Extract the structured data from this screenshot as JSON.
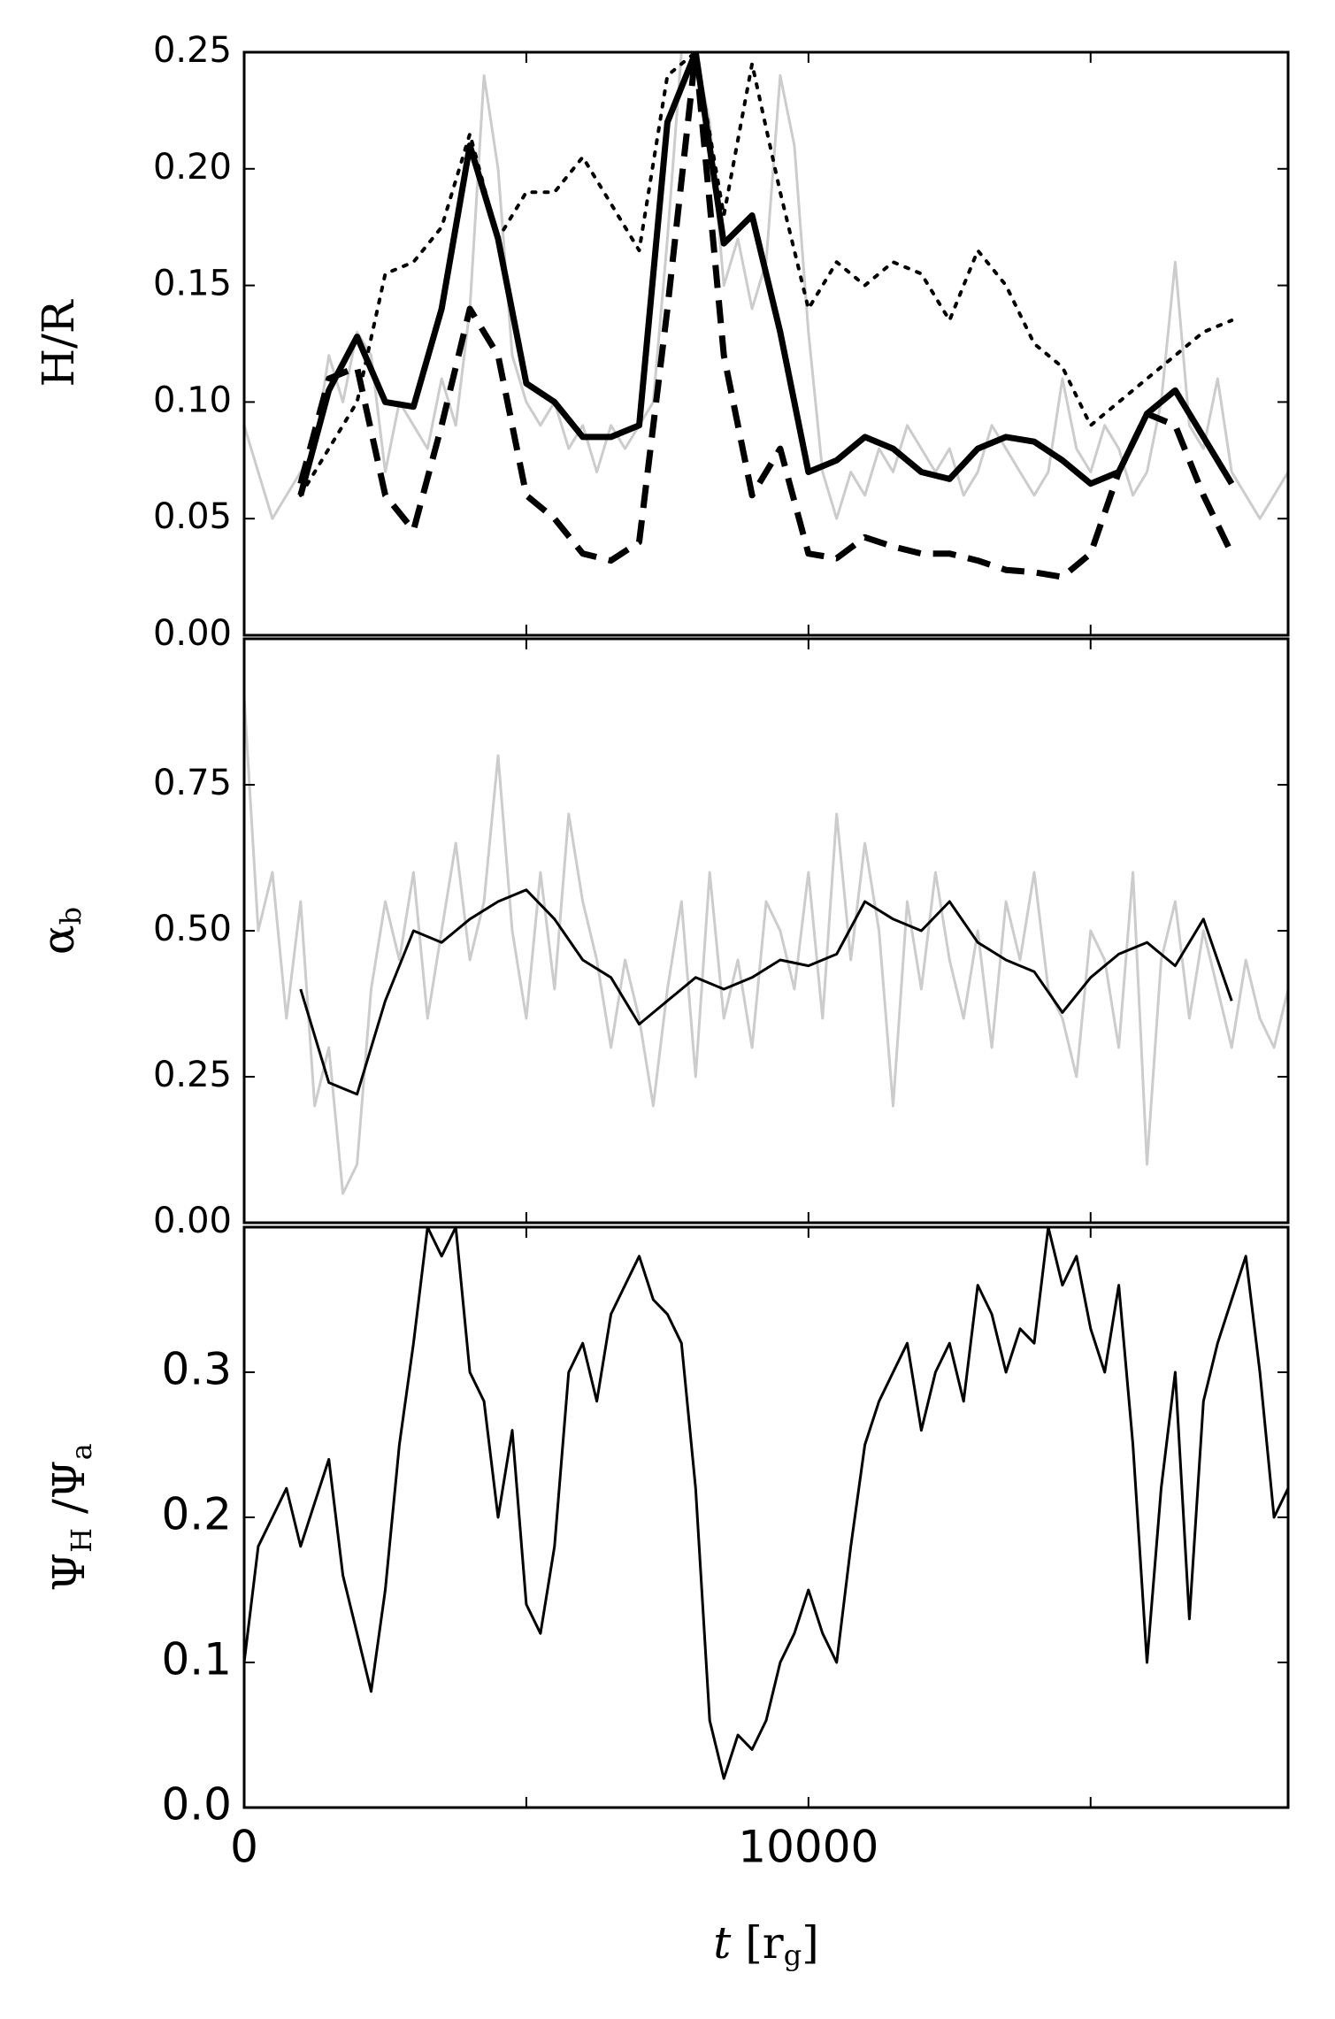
{
  "chart_data": [
    {
      "type": "line",
      "ylabel": [
        "H/R"
      ],
      "xlim": [
        0,
        18500
      ],
      "xticks": [
        0,
        10000
      ],
      "xminorticks": [
        5000,
        15000
      ],
      "ylim": [
        0,
        0.25
      ],
      "yticks": [
        {
          "value": 0,
          "label": "0.00"
        },
        {
          "value": 0.05,
          "label": "0.05"
        },
        {
          "value": 0.1,
          "label": "0.10"
        },
        {
          "value": 0.15,
          "label": "0.15"
        },
        {
          "value": 0.2,
          "label": "0.20"
        },
        {
          "value": 0.25,
          "label": "0.25"
        }
      ],
      "x": [
        0,
        250,
        500,
        750,
        1000,
        1250,
        1500,
        1750,
        2000,
        2250,
        2500,
        2750,
        3000,
        3250,
        3500,
        3750,
        4000,
        4250,
        4500,
        4750,
        5000,
        5250,
        5500,
        5750,
        6000,
        6250,
        6500,
        6750,
        7000,
        7250,
        7500,
        7750,
        8000,
        8250,
        8500,
        8750,
        9000,
        9250,
        9500,
        9750,
        10000,
        10250,
        10500,
        10750,
        11000,
        11250,
        11500,
        11750,
        12000,
        12250,
        12500,
        12750,
        13000,
        13250,
        13500,
        13750,
        14000,
        14250,
        14500,
        14750,
        15000,
        15250,
        15500,
        15750,
        16000,
        16250,
        16500,
        16750,
        17000,
        17250,
        17500,
        17750,
        18000,
        18250,
        18500
      ],
      "series": [
        {
          "color": "#cccccc",
          "style": "solid",
          "weight": "thin",
          "values": [
            0.09,
            0.07,
            0.05,
            0.06,
            0.07,
            0.08,
            0.12,
            0.1,
            0.13,
            0.12,
            0.07,
            0.1,
            0.09,
            0.08,
            0.11,
            0.09,
            0.14,
            0.24,
            0.2,
            0.12,
            0.1,
            0.09,
            0.1,
            0.08,
            0.09,
            0.07,
            0.09,
            0.08,
            0.09,
            0.1,
            0.17,
            0.25,
            0.25,
            0.22,
            0.15,
            0.17,
            0.14,
            0.16,
            0.24,
            0.21,
            0.13,
            0.07,
            0.05,
            0.07,
            0.06,
            0.08,
            0.07,
            0.09,
            0.08,
            0.07,
            0.08,
            0.06,
            0.07,
            0.09,
            0.08,
            0.07,
            0.06,
            0.07,
            0.11,
            0.08,
            0.07,
            0.09,
            0.08,
            0.06,
            0.07,
            0.1,
            0.16,
            0.09,
            0.08,
            0.11,
            0.07,
            0.06,
            0.05,
            0.06,
            0.07
          ]
        },
        {
          "color": "#000000",
          "style": "dotted",
          "weight": "medium",
          "x": [
            1000,
            1500,
            2000,
            2500,
            3000,
            3500,
            4000,
            4500,
            5000,
            5500,
            6000,
            6500,
            7000,
            7500,
            8000,
            8500,
            9000,
            9500,
            10000,
            10500,
            11000,
            11500,
            12000,
            12500,
            13000,
            13500,
            14000,
            14500,
            15000,
            15500,
            16000,
            16500,
            17000,
            17500
          ],
          "values": [
            0.06,
            0.08,
            0.1,
            0.155,
            0.16,
            0.175,
            0.215,
            0.17,
            0.19,
            0.19,
            0.205,
            0.185,
            0.165,
            0.24,
            0.25,
            0.18,
            0.245,
            0.19,
            0.14,
            0.16,
            0.15,
            0.16,
            0.155,
            0.135,
            0.165,
            0.15,
            0.125,
            0.115,
            0.09,
            0.1,
            0.11,
            0.12,
            0.13,
            0.135
          ]
        },
        {
          "color": "#000000",
          "style": "dashed",
          "weight": "thick",
          "x": [
            1000,
            1500,
            2000,
            2500,
            3000,
            3500,
            4000,
            4500,
            5000,
            5500,
            6000,
            6500,
            7000,
            7500,
            8000,
            8500,
            9000,
            9500,
            10000,
            10500,
            11000,
            11500,
            12000,
            12500,
            13000,
            13500,
            14000,
            14500,
            15000,
            15500,
            16000,
            16500,
            17000,
            17500
          ],
          "values": [
            0.065,
            0.11,
            0.115,
            0.06,
            0.045,
            0.09,
            0.14,
            0.12,
            0.06,
            0.05,
            0.035,
            0.032,
            0.04,
            0.14,
            0.25,
            0.12,
            0.06,
            0.08,
            0.035,
            0.033,
            0.042,
            0.038,
            0.035,
            0.035,
            0.032,
            0.028,
            0.027,
            0.025,
            0.035,
            0.07,
            0.095,
            0.09,
            0.06,
            0.035
          ]
        },
        {
          "color": "#000000",
          "style": "solid",
          "weight": "thick",
          "x": [
            1000,
            1500,
            2000,
            2500,
            3000,
            3500,
            4000,
            4500,
            5000,
            5500,
            6000,
            6500,
            7000,
            7500,
            8000,
            8500,
            9000,
            9500,
            10000,
            10500,
            11000,
            11500,
            12000,
            12500,
            13000,
            13500,
            14000,
            14500,
            15000,
            15500,
            16000,
            16500,
            17000,
            17500
          ],
          "values": [
            0.06,
            0.105,
            0.128,
            0.1,
            0.098,
            0.14,
            0.21,
            0.17,
            0.108,
            0.1,
            0.085,
            0.085,
            0.09,
            0.22,
            0.25,
            0.168,
            0.18,
            0.13,
            0.07,
            0.075,
            0.085,
            0.08,
            0.07,
            0.067,
            0.08,
            0.085,
            0.083,
            0.075,
            0.065,
            0.07,
            0.095,
            0.105,
            0.085,
            0.065
          ]
        }
      ]
    },
    {
      "type": "line",
      "ylabel": [
        "α",
        "b"
      ],
      "xlim": [
        0,
        18500
      ],
      "xticks": [
        0,
        10000
      ],
      "xminorticks": [
        5000,
        15000
      ],
      "ylim": [
        0,
        1
      ],
      "yticks": [
        {
          "value": 0,
          "label": "0.00"
        },
        {
          "value": 0.25,
          "label": "0.25"
        },
        {
          "value": 0.5,
          "label": "0.50"
        },
        {
          "value": 0.75,
          "label": "0.75"
        }
      ],
      "x": [
        0,
        250,
        500,
        750,
        1000,
        1250,
        1500,
        1750,
        2000,
        2250,
        2500,
        2750,
        3000,
        3250,
        3500,
        3750,
        4000,
        4250,
        4500,
        4750,
        5000,
        5250,
        5500,
        5750,
        6000,
        6250,
        6500,
        6750,
        7000,
        7250,
        7500,
        7750,
        8000,
        8250,
        8500,
        8750,
        9000,
        9250,
        9500,
        9750,
        10000,
        10250,
        10500,
        10750,
        11000,
        11250,
        11500,
        11750,
        12000,
        12250,
        12500,
        12750,
        13000,
        13250,
        13500,
        13750,
        14000,
        14250,
        14500,
        14750,
        15000,
        15250,
        15500,
        15750,
        16000,
        16250,
        16500,
        16750,
        17000,
        17250,
        17500,
        17750,
        18000,
        18250,
        18500
      ],
      "series": [
        {
          "color": "#cccccc",
          "style": "solid",
          "weight": "thin",
          "values": [
            0.9,
            0.5,
            0.6,
            0.35,
            0.55,
            0.2,
            0.3,
            0.05,
            0.1,
            0.4,
            0.55,
            0.45,
            0.6,
            0.35,
            0.5,
            0.65,
            0.45,
            0.55,
            0.8,
            0.5,
            0.35,
            0.6,
            0.4,
            0.7,
            0.55,
            0.45,
            0.3,
            0.45,
            0.35,
            0.2,
            0.4,
            0.55,
            0.25,
            0.6,
            0.35,
            0.45,
            0.3,
            0.55,
            0.5,
            0.4,
            0.6,
            0.35,
            0.7,
            0.45,
            0.65,
            0.5,
            0.2,
            0.55,
            0.4,
            0.6,
            0.45,
            0.35,
            0.5,
            0.3,
            0.55,
            0.45,
            0.6,
            0.4,
            0.35,
            0.25,
            0.5,
            0.45,
            0.3,
            0.6,
            0.1,
            0.45,
            0.55,
            0.35,
            0.5,
            0.4,
            0.3,
            0.45,
            0.35,
            0.3,
            0.4
          ]
        },
        {
          "color": "#000000",
          "style": "solid",
          "weight": "thin",
          "x": [
            1000,
            1500,
            2000,
            2500,
            3000,
            3500,
            4000,
            4500,
            5000,
            5500,
            6000,
            6500,
            7000,
            7500,
            8000,
            8500,
            9000,
            9500,
            10000,
            10500,
            11000,
            11500,
            12000,
            12500,
            13000,
            13500,
            14000,
            14500,
            15000,
            15500,
            16000,
            16500,
            17000,
            17500
          ],
          "values": [
            0.4,
            0.24,
            0.22,
            0.38,
            0.5,
            0.48,
            0.52,
            0.55,
            0.57,
            0.52,
            0.45,
            0.42,
            0.34,
            0.38,
            0.42,
            0.4,
            0.42,
            0.45,
            0.44,
            0.46,
            0.55,
            0.52,
            0.5,
            0.55,
            0.48,
            0.45,
            0.43,
            0.36,
            0.42,
            0.46,
            0.48,
            0.44,
            0.52,
            0.38
          ]
        }
      ]
    },
    {
      "type": "line",
      "ylabel": [
        "Ψ",
        "H",
        " /Ψ",
        "a"
      ],
      "xlabel": [
        "t",
        " [r",
        "g",
        "]"
      ],
      "xlim": [
        0,
        18500
      ],
      "xticks": [
        0,
        10000
      ],
      "xminorticks": [
        5000,
        15000
      ],
      "ylim": [
        0,
        0.4
      ],
      "yticks": [
        {
          "value": 0,
          "label": "0.0"
        },
        {
          "value": 0.1,
          "label": "0.1"
        },
        {
          "value": 0.2,
          "label": "0.2"
        },
        {
          "value": 0.3,
          "label": "0.3"
        }
      ],
      "x": [
        0,
        250,
        500,
        750,
        1000,
        1250,
        1500,
        1750,
        2000,
        2250,
        2500,
        2750,
        3000,
        3250,
        3500,
        3750,
        4000,
        4250,
        4500,
        4750,
        5000,
        5250,
        5500,
        5750,
        6000,
        6250,
        6500,
        6750,
        7000,
        7250,
        7500,
        7750,
        8000,
        8250,
        8500,
        8750,
        9000,
        9250,
        9500,
        9750,
        10000,
        10250,
        10500,
        10750,
        11000,
        11250,
        11500,
        11750,
        12000,
        12250,
        12500,
        12750,
        13000,
        13250,
        13500,
        13750,
        14000,
        14250,
        14500,
        14750,
        15000,
        15250,
        15500,
        15750,
        16000,
        16250,
        16500,
        16750,
        17000,
        17250,
        17500,
        17750,
        18000,
        18250,
        18500
      ],
      "series": [
        {
          "color": "#000000",
          "style": "solid",
          "weight": "thin",
          "values": [
            0.1,
            0.18,
            0.2,
            0.22,
            0.18,
            0.21,
            0.24,
            0.16,
            0.12,
            0.08,
            0.15,
            0.25,
            0.32,
            0.4,
            0.38,
            0.4,
            0.3,
            0.28,
            0.2,
            0.26,
            0.14,
            0.12,
            0.18,
            0.3,
            0.32,
            0.28,
            0.34,
            0.36,
            0.38,
            0.35,
            0.34,
            0.32,
            0.22,
            0.06,
            0.02,
            0.05,
            0.04,
            0.06,
            0.1,
            0.12,
            0.15,
            0.12,
            0.1,
            0.18,
            0.25,
            0.28,
            0.3,
            0.32,
            0.26,
            0.3,
            0.32,
            0.28,
            0.36,
            0.34,
            0.3,
            0.33,
            0.32,
            0.4,
            0.36,
            0.38,
            0.33,
            0.3,
            0.36,
            0.25,
            0.1,
            0.22,
            0.3,
            0.13,
            0.28,
            0.32,
            0.35,
            0.38,
            0.3,
            0.2,
            0.22
          ]
        }
      ]
    }
  ]
}
